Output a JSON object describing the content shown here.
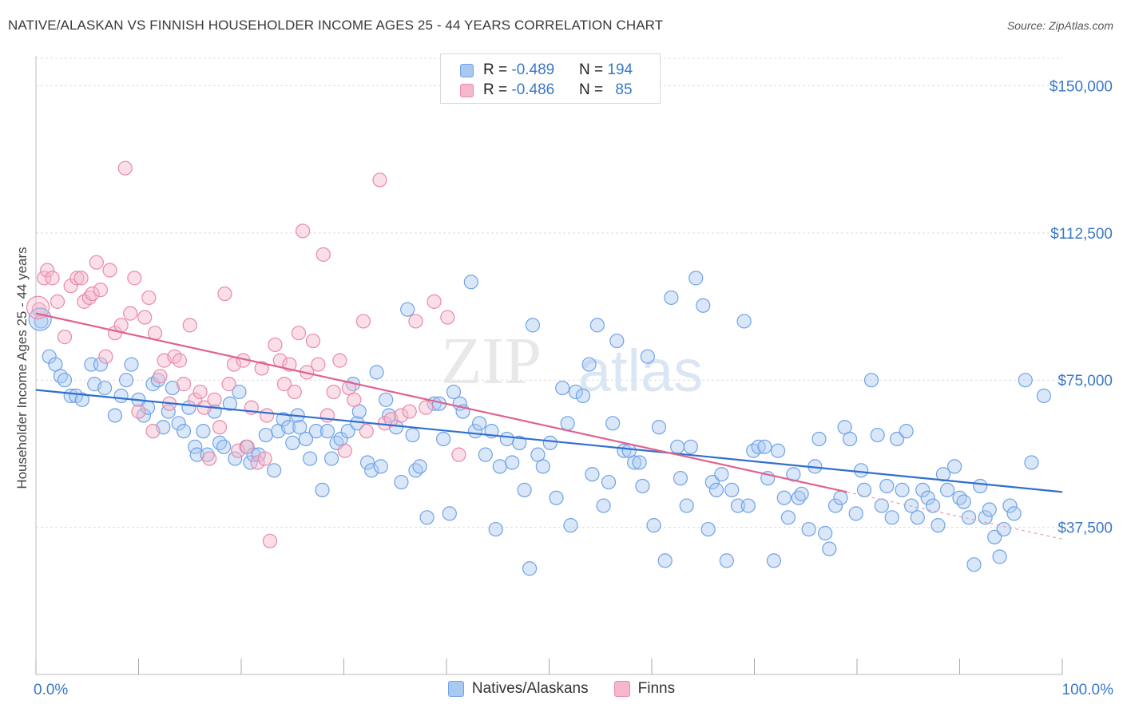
{
  "title": "NATIVE/ALASKAN VS FINNISH HOUSEHOLDER INCOME AGES 25 - 44 YEARS CORRELATION CHART",
  "source": "Source: ZipAtlas.com",
  "watermark": {
    "zip": "ZIP",
    "atlas": "atlas"
  },
  "legend_top": [
    {
      "r_label": "R = ",
      "r_value": "-0.489",
      "n_label": "N = ",
      "n_value": "194",
      "color": "#aac9f2"
    },
    {
      "r_label": "R = ",
      "r_value": "-0.486",
      "n_label": "N = ",
      "n_value": "85",
      "color": "#f5b8cb"
    }
  ],
  "chart_data": {
    "type": "scatter",
    "title": "NATIVE/ALASKAN VS FINNISH HOUSEHOLDER INCOME AGES 25 - 44 YEARS CORRELATION CHART",
    "xlabel": "",
    "ylabel": "Householder Income Ages 25 - 44 years",
    "xlim": [
      0,
      100
    ],
    "ylim": [
      0,
      157000
    ],
    "x_tick_labels": [
      "0.0%",
      "100.0%"
    ],
    "y_ticks": [
      37500,
      75000,
      112500,
      150000
    ],
    "y_tick_labels": [
      "$37,500",
      "$75,000",
      "$112,500",
      "$150,000"
    ],
    "grid": true,
    "legend_position": "bottom",
    "series": [
      {
        "name": "Natives/Alaskans",
        "color": "#6fa3e6",
        "fill": "#aac9f2",
        "trend": {
          "x": [
            0,
            100
          ],
          "y": [
            72500,
            46500
          ]
        },
        "points": [
          [
            0.5,
            90
          ],
          [
            1.3,
            81
          ],
          [
            1.9,
            79
          ],
          [
            2.4,
            76
          ],
          [
            2.8,
            75
          ],
          [
            3.4,
            71
          ],
          [
            3.9,
            71
          ],
          [
            4.5,
            70
          ],
          [
            5.4,
            79
          ],
          [
            5.7,
            74
          ],
          [
            6.3,
            79
          ],
          [
            6.7,
            73
          ],
          [
            7.7,
            66
          ],
          [
            8.3,
            71
          ],
          [
            8.8,
            75
          ],
          [
            9.3,
            79
          ],
          [
            10.0,
            70
          ],
          [
            10.5,
            66
          ],
          [
            10.9,
            68
          ],
          [
            11.4,
            74
          ],
          [
            11.9,
            75
          ],
          [
            12.4,
            63
          ],
          [
            12.9,
            67
          ],
          [
            13.3,
            73
          ],
          [
            13.9,
            64
          ],
          [
            14.4,
            62
          ],
          [
            14.9,
            68
          ],
          [
            15.5,
            58
          ],
          [
            15.7,
            56
          ],
          [
            16.3,
            62
          ],
          [
            16.7,
            56
          ],
          [
            17.4,
            67
          ],
          [
            17.9,
            59
          ],
          [
            18.3,
            58
          ],
          [
            18.9,
            69
          ],
          [
            19.4,
            55
          ],
          [
            19.8,
            72
          ],
          [
            20.5,
            58
          ],
          [
            20.9,
            54
          ],
          [
            21.2,
            56
          ],
          [
            21.7,
            56
          ],
          [
            22.4,
            61
          ],
          [
            23.2,
            52
          ],
          [
            23.6,
            62
          ],
          [
            24.1,
            65
          ],
          [
            24.6,
            63
          ],
          [
            25.0,
            59
          ],
          [
            25.5,
            66
          ],
          [
            25.7,
            63
          ],
          [
            26.3,
            60
          ],
          [
            26.7,
            55
          ],
          [
            27.3,
            62
          ],
          [
            27.9,
            47
          ],
          [
            28.4,
            62
          ],
          [
            28.8,
            55
          ],
          [
            29.3,
            59
          ],
          [
            29.7,
            60
          ],
          [
            30.4,
            62
          ],
          [
            30.9,
            74
          ],
          [
            31.3,
            64
          ],
          [
            31.5,
            67
          ],
          [
            32.3,
            54
          ],
          [
            32.7,
            52
          ],
          [
            33.2,
            77
          ],
          [
            33.6,
            53
          ],
          [
            34.1,
            70
          ],
          [
            34.4,
            66
          ],
          [
            35.1,
            63
          ],
          [
            35.6,
            49
          ],
          [
            36.2,
            93
          ],
          [
            36.7,
            61
          ],
          [
            37.0,
            52
          ],
          [
            37.4,
            53
          ],
          [
            38.1,
            40
          ],
          [
            38.8,
            69
          ],
          [
            39.3,
            69
          ],
          [
            39.7,
            60
          ],
          [
            40.3,
            41
          ],
          [
            40.7,
            72
          ],
          [
            41.3,
            69
          ],
          [
            41.6,
            67
          ],
          [
            42.4,
            100
          ],
          [
            42.8,
            62
          ],
          [
            43.2,
            64
          ],
          [
            43.8,
            56
          ],
          [
            44.4,
            62
          ],
          [
            44.8,
            37
          ],
          [
            45.2,
            53
          ],
          [
            45.9,
            60
          ],
          [
            46.4,
            54
          ],
          [
            47.1,
            59
          ],
          [
            47.6,
            47
          ],
          [
            48.1,
            27
          ],
          [
            48.4,
            89
          ],
          [
            48.9,
            56
          ],
          [
            49.4,
            53
          ],
          [
            50.1,
            59
          ],
          [
            50.7,
            45
          ],
          [
            51.3,
            73
          ],
          [
            51.8,
            64
          ],
          [
            52.1,
            38
          ],
          [
            52.6,
            72
          ],
          [
            53.3,
            71
          ],
          [
            53.9,
            79
          ],
          [
            54.2,
            51
          ],
          [
            54.7,
            89
          ],
          [
            55.3,
            43
          ],
          [
            55.8,
            49
          ],
          [
            56.2,
            64
          ],
          [
            56.6,
            85
          ],
          [
            57.3,
            57
          ],
          [
            57.8,
            57
          ],
          [
            58.3,
            54
          ],
          [
            58.8,
            54
          ],
          [
            59.1,
            48
          ],
          [
            59.6,
            81
          ],
          [
            60.2,
            38
          ],
          [
            60.7,
            63
          ],
          [
            61.3,
            29
          ],
          [
            61.9,
            96
          ],
          [
            62.5,
            58
          ],
          [
            62.8,
            50
          ],
          [
            63.4,
            43
          ],
          [
            63.8,
            58
          ],
          [
            64.3,
            101
          ],
          [
            65.0,
            94
          ],
          [
            65.5,
            37
          ],
          [
            65.9,
            49
          ],
          [
            66.3,
            47
          ],
          [
            66.8,
            51
          ],
          [
            67.3,
            29
          ],
          [
            67.8,
            47
          ],
          [
            68.4,
            43
          ],
          [
            69.0,
            90
          ],
          [
            69.4,
            43
          ],
          [
            69.9,
            57
          ],
          [
            70.4,
            58
          ],
          [
            71.0,
            58
          ],
          [
            71.3,
            50
          ],
          [
            71.9,
            29
          ],
          [
            72.3,
            57
          ],
          [
            72.9,
            45
          ],
          [
            73.3,
            40
          ],
          [
            73.8,
            51
          ],
          [
            74.3,
            45
          ],
          [
            74.6,
            46
          ],
          [
            75.3,
            37
          ],
          [
            75.9,
            53
          ],
          [
            76.3,
            60
          ],
          [
            76.9,
            36
          ],
          [
            77.3,
            32
          ],
          [
            77.9,
            43
          ],
          [
            78.4,
            45
          ],
          [
            78.8,
            63
          ],
          [
            79.3,
            60
          ],
          [
            79.9,
            41
          ],
          [
            80.4,
            52
          ],
          [
            80.7,
            47
          ],
          [
            81.4,
            75
          ],
          [
            82.0,
            61
          ],
          [
            82.4,
            43
          ],
          [
            82.9,
            48
          ],
          [
            83.4,
            40
          ],
          [
            83.9,
            60
          ],
          [
            84.4,
            47
          ],
          [
            84.8,
            62
          ],
          [
            85.3,
            43
          ],
          [
            85.9,
            40
          ],
          [
            86.4,
            47
          ],
          [
            86.9,
            45
          ],
          [
            87.4,
            43
          ],
          [
            87.9,
            38
          ],
          [
            88.4,
            51
          ],
          [
            88.8,
            47
          ],
          [
            89.5,
            53
          ],
          [
            90.0,
            45
          ],
          [
            90.4,
            44
          ],
          [
            90.9,
            40
          ],
          [
            91.4,
            28
          ],
          [
            92.0,
            48
          ],
          [
            92.5,
            40
          ],
          [
            92.9,
            42
          ],
          [
            93.4,
            35
          ],
          [
            93.9,
            30
          ],
          [
            94.3,
            37
          ],
          [
            94.9,
            43
          ],
          [
            95.3,
            41
          ],
          [
            96.4,
            75
          ],
          [
            97.0,
            54
          ],
          [
            98.2,
            71
          ]
        ]
      },
      {
        "name": "Finns",
        "color": "#e98aa8",
        "fill": "#f5b8cb",
        "trend": {
          "x": [
            0,
            79
          ],
          "y": [
            92000,
            46500
          ]
        },
        "trend_dashed": {
          "x": [
            79,
            100
          ],
          "y": [
            46500,
            34500
          ]
        },
        "points": [
          [
            0.3,
            93
          ],
          [
            0.8,
            101
          ],
          [
            1.1,
            103
          ],
          [
            1.6,
            101
          ],
          [
            2.1,
            95
          ],
          [
            2.8,
            86
          ],
          [
            3.4,
            99
          ],
          [
            4.0,
            101
          ],
          [
            4.4,
            101
          ],
          [
            4.7,
            95
          ],
          [
            5.2,
            96
          ],
          [
            5.5,
            97
          ],
          [
            5.9,
            105
          ],
          [
            6.3,
            98
          ],
          [
            6.8,
            81
          ],
          [
            7.2,
            103
          ],
          [
            7.7,
            87
          ],
          [
            8.3,
            89
          ],
          [
            8.7,
            129
          ],
          [
            9.2,
            92
          ],
          [
            9.6,
            101
          ],
          [
            10.0,
            67
          ],
          [
            10.6,
            91
          ],
          [
            11.0,
            96
          ],
          [
            11.4,
            62
          ],
          [
            11.6,
            87
          ],
          [
            12.1,
            76
          ],
          [
            12.5,
            80
          ],
          [
            13.0,
            69
          ],
          [
            13.5,
            81
          ],
          [
            14.0,
            80
          ],
          [
            14.4,
            74
          ],
          [
            15.0,
            89
          ],
          [
            15.5,
            70
          ],
          [
            16.0,
            72
          ],
          [
            16.4,
            68
          ],
          [
            16.9,
            55
          ],
          [
            17.4,
            70
          ],
          [
            17.9,
            63
          ],
          [
            18.4,
            97
          ],
          [
            18.8,
            74
          ],
          [
            19.3,
            79
          ],
          [
            19.7,
            57
          ],
          [
            20.2,
            80
          ],
          [
            20.6,
            58
          ],
          [
            21.0,
            68
          ],
          [
            21.6,
            54
          ],
          [
            22.0,
            78
          ],
          [
            22.3,
            55
          ],
          [
            22.5,
            66
          ],
          [
            22.8,
            34
          ],
          [
            23.3,
            84
          ],
          [
            23.8,
            80
          ],
          [
            24.2,
            74
          ],
          [
            24.7,
            79
          ],
          [
            25.2,
            72
          ],
          [
            25.6,
            87
          ],
          [
            26.0,
            113
          ],
          [
            26.4,
            77
          ],
          [
            27.0,
            85
          ],
          [
            27.5,
            79
          ],
          [
            28.0,
            107
          ],
          [
            28.4,
            66
          ],
          [
            29.0,
            72
          ],
          [
            29.6,
            80
          ],
          [
            30.1,
            57
          ],
          [
            30.5,
            73
          ],
          [
            31.0,
            70
          ],
          [
            31.9,
            90
          ],
          [
            32.2,
            62
          ],
          [
            33.5,
            126
          ],
          [
            34.0,
            64
          ],
          [
            34.6,
            65
          ],
          [
            35.6,
            66
          ],
          [
            36.4,
            67
          ],
          [
            37.0,
            90
          ],
          [
            38.0,
            68
          ],
          [
            38.8,
            95
          ],
          [
            40.1,
            91
          ],
          [
            41.2,
            56
          ]
        ]
      }
    ]
  },
  "bottom_legend": [
    {
      "label": "Natives/Alaskans",
      "color": "#aac9f2"
    },
    {
      "label": "Finns",
      "color": "#f5b8cb"
    }
  ]
}
